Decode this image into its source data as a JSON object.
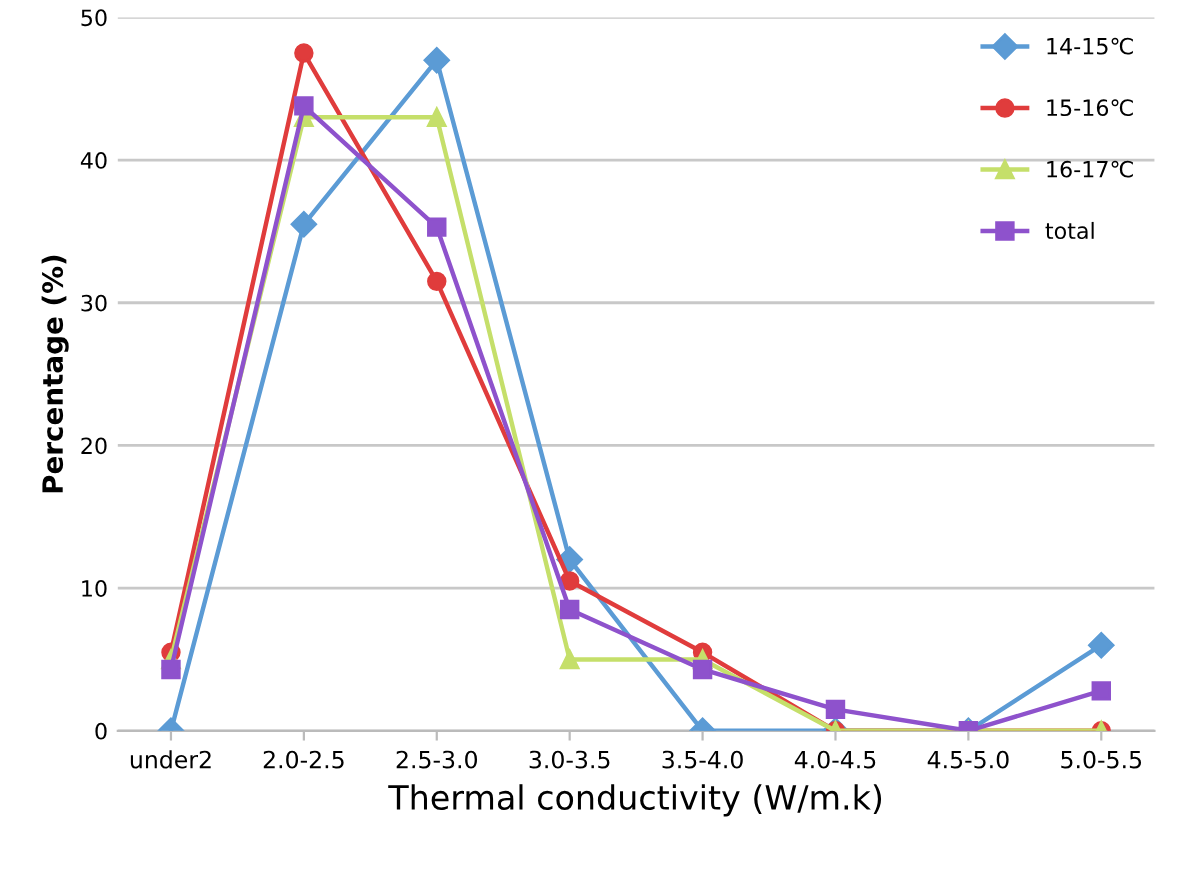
{
  "chart_data": {
    "type": "line",
    "xlabel": "Thermal conductivity (W/m.k)",
    "ylabel": "Percentage (%)",
    "categories": [
      "under2",
      "2.0-2.5",
      "2.5-3.0",
      "3.0-3.5",
      "3.5-4.0",
      "4.0-4.5",
      "4.5-5.0",
      "5.0-5.5"
    ],
    "series": [
      {
        "name": "14-15℃",
        "color": "#5b9bd5",
        "marker": "diamond",
        "values": [
          0,
          35.5,
          47,
          12,
          0,
          0,
          0,
          6
        ]
      },
      {
        "name": "15-16℃",
        "color": "#e03c3c",
        "marker": "circle",
        "values": [
          5.5,
          47.5,
          31.5,
          10.5,
          5.5,
          0,
          0,
          0
        ]
      },
      {
        "name": "16-17℃",
        "color": "#c5df6a",
        "marker": "triangle",
        "values": [
          5,
          43,
          43,
          5,
          5,
          0,
          0,
          0
        ]
      },
      {
        "name": "total",
        "color": "#8e52cc",
        "marker": "square",
        "values": [
          4.3,
          43.8,
          35.3,
          8.5,
          4.3,
          1.5,
          0,
          2.8
        ]
      }
    ],
    "ylim": [
      0,
      50
    ],
    "yticks": [
      0,
      10,
      20,
      30,
      40,
      50
    ],
    "grid": "y",
    "legend": "top right",
    "line_style": "solid"
  }
}
